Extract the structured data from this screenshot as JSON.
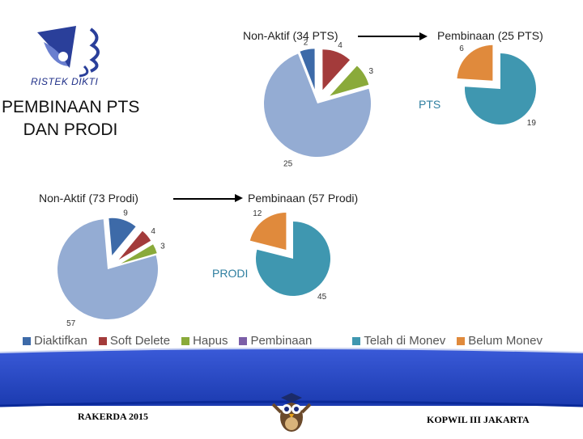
{
  "header": {
    "logo_text": "RISTEK DIKTI",
    "title_line1": "PEMBINAAN PTS",
    "title_line2": "DAN PRODI"
  },
  "colors": {
    "diaktifkan": "#3d6aa8",
    "soft_delete": "#a33b3b",
    "hapus": "#8aaa3a",
    "pembinaan": "#7b5ea7",
    "nonaktif_big": "#94acd3",
    "telah_di_monev": "#3f97b0",
    "belum_monev": "#e08a3c",
    "footer_blue": "#1f3fbf",
    "footer_dark": "#0b2a9a"
  },
  "flows": {
    "pts_from": "Non-Aktif (34 PTS)",
    "pts_to": "Pembinaan (25 PTS)",
    "prodi_from": "Non-Aktif (73 Prodi)",
    "prodi_to": "Pembinaan (57 Prodi)"
  },
  "chart_data": [
    {
      "type": "pie",
      "label": "",
      "slices": [
        {
          "name": "Diaktifkan",
          "value": 2
        },
        {
          "name": "Soft Delete",
          "value": 4
        },
        {
          "name": "Hapus",
          "value": 3
        },
        {
          "name": "Pembinaan",
          "value": 25
        }
      ]
    },
    {
      "type": "pie",
      "label": "PTS",
      "slices": [
        {
          "name": "Telah di Monev",
          "value": 19
        },
        {
          "name": "Belum Monev",
          "value": 6
        }
      ]
    },
    {
      "type": "pie",
      "label": "",
      "slices": [
        {
          "name": "Diaktifkan",
          "value": 9
        },
        {
          "name": "Soft Delete",
          "value": 4
        },
        {
          "name": "Hapus",
          "value": 3
        },
        {
          "name": "Pembinaan",
          "value": 57
        }
      ]
    },
    {
      "type": "pie",
      "label": "PRODI",
      "slices": [
        {
          "name": "Telah di Monev",
          "value": 45
        },
        {
          "name": "Belum Monev",
          "value": 12
        }
      ]
    }
  ],
  "legend": [
    {
      "label": "Diaktifkan",
      "color": "#3d6aa8"
    },
    {
      "label": "Soft Delete",
      "color": "#a33b3b"
    },
    {
      "label": "Hapus",
      "color": "#8aaa3a"
    },
    {
      "label": "Pembinaan",
      "color": "#7b5ea7"
    },
    {
      "label": "Telah di Monev",
      "color": "#3f97b0"
    },
    {
      "label": "Belum Monev",
      "color": "#e08a3c"
    }
  ],
  "footer": {
    "left_text": "RAKERDA 2015",
    "right_text": "KOPWIL III JAKARTA"
  }
}
